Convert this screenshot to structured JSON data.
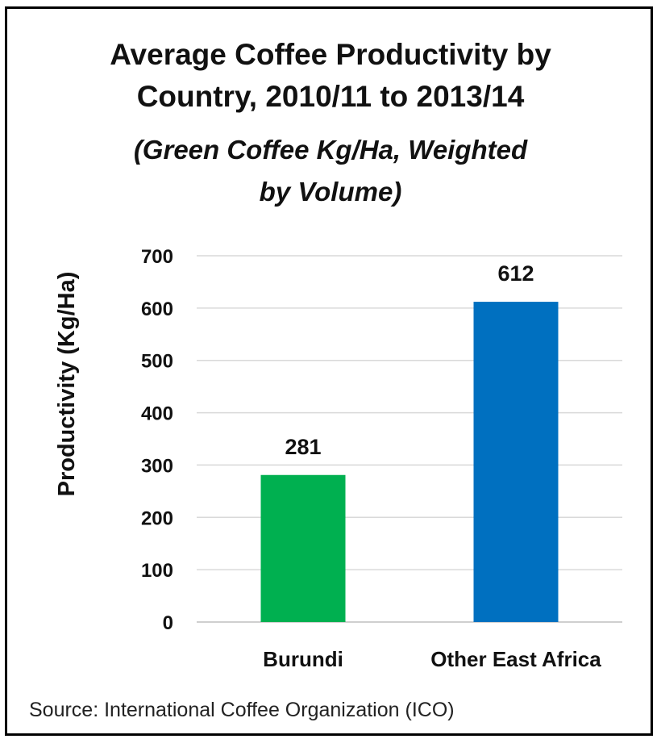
{
  "chart_data": {
    "type": "bar",
    "title": [
      "Average Coffee Productivity by",
      "Country, 2010/11 to 2013/14"
    ],
    "subtitle": [
      "(Green Coffee Kg/Ha, Weighted",
      "by Volume)"
    ],
    "xlabel": "",
    "ylabel": "Productivity (Kg/Ha)",
    "categories": [
      "Burundi",
      "Other East Africa"
    ],
    "values": [
      281,
      612
    ],
    "data_labels": [
      "281",
      "612"
    ],
    "colors": [
      "#00b050",
      "#0070c0"
    ],
    "ylim": [
      0,
      700
    ],
    "yticks": [
      0,
      100,
      200,
      300,
      400,
      500,
      600,
      700
    ],
    "ytick_labels": [
      "0",
      "100",
      "200",
      "300",
      "400",
      "500",
      "600",
      "700"
    ],
    "grid": true,
    "legend": "none"
  },
  "source": "Source: International Coffee Organization (ICO)"
}
